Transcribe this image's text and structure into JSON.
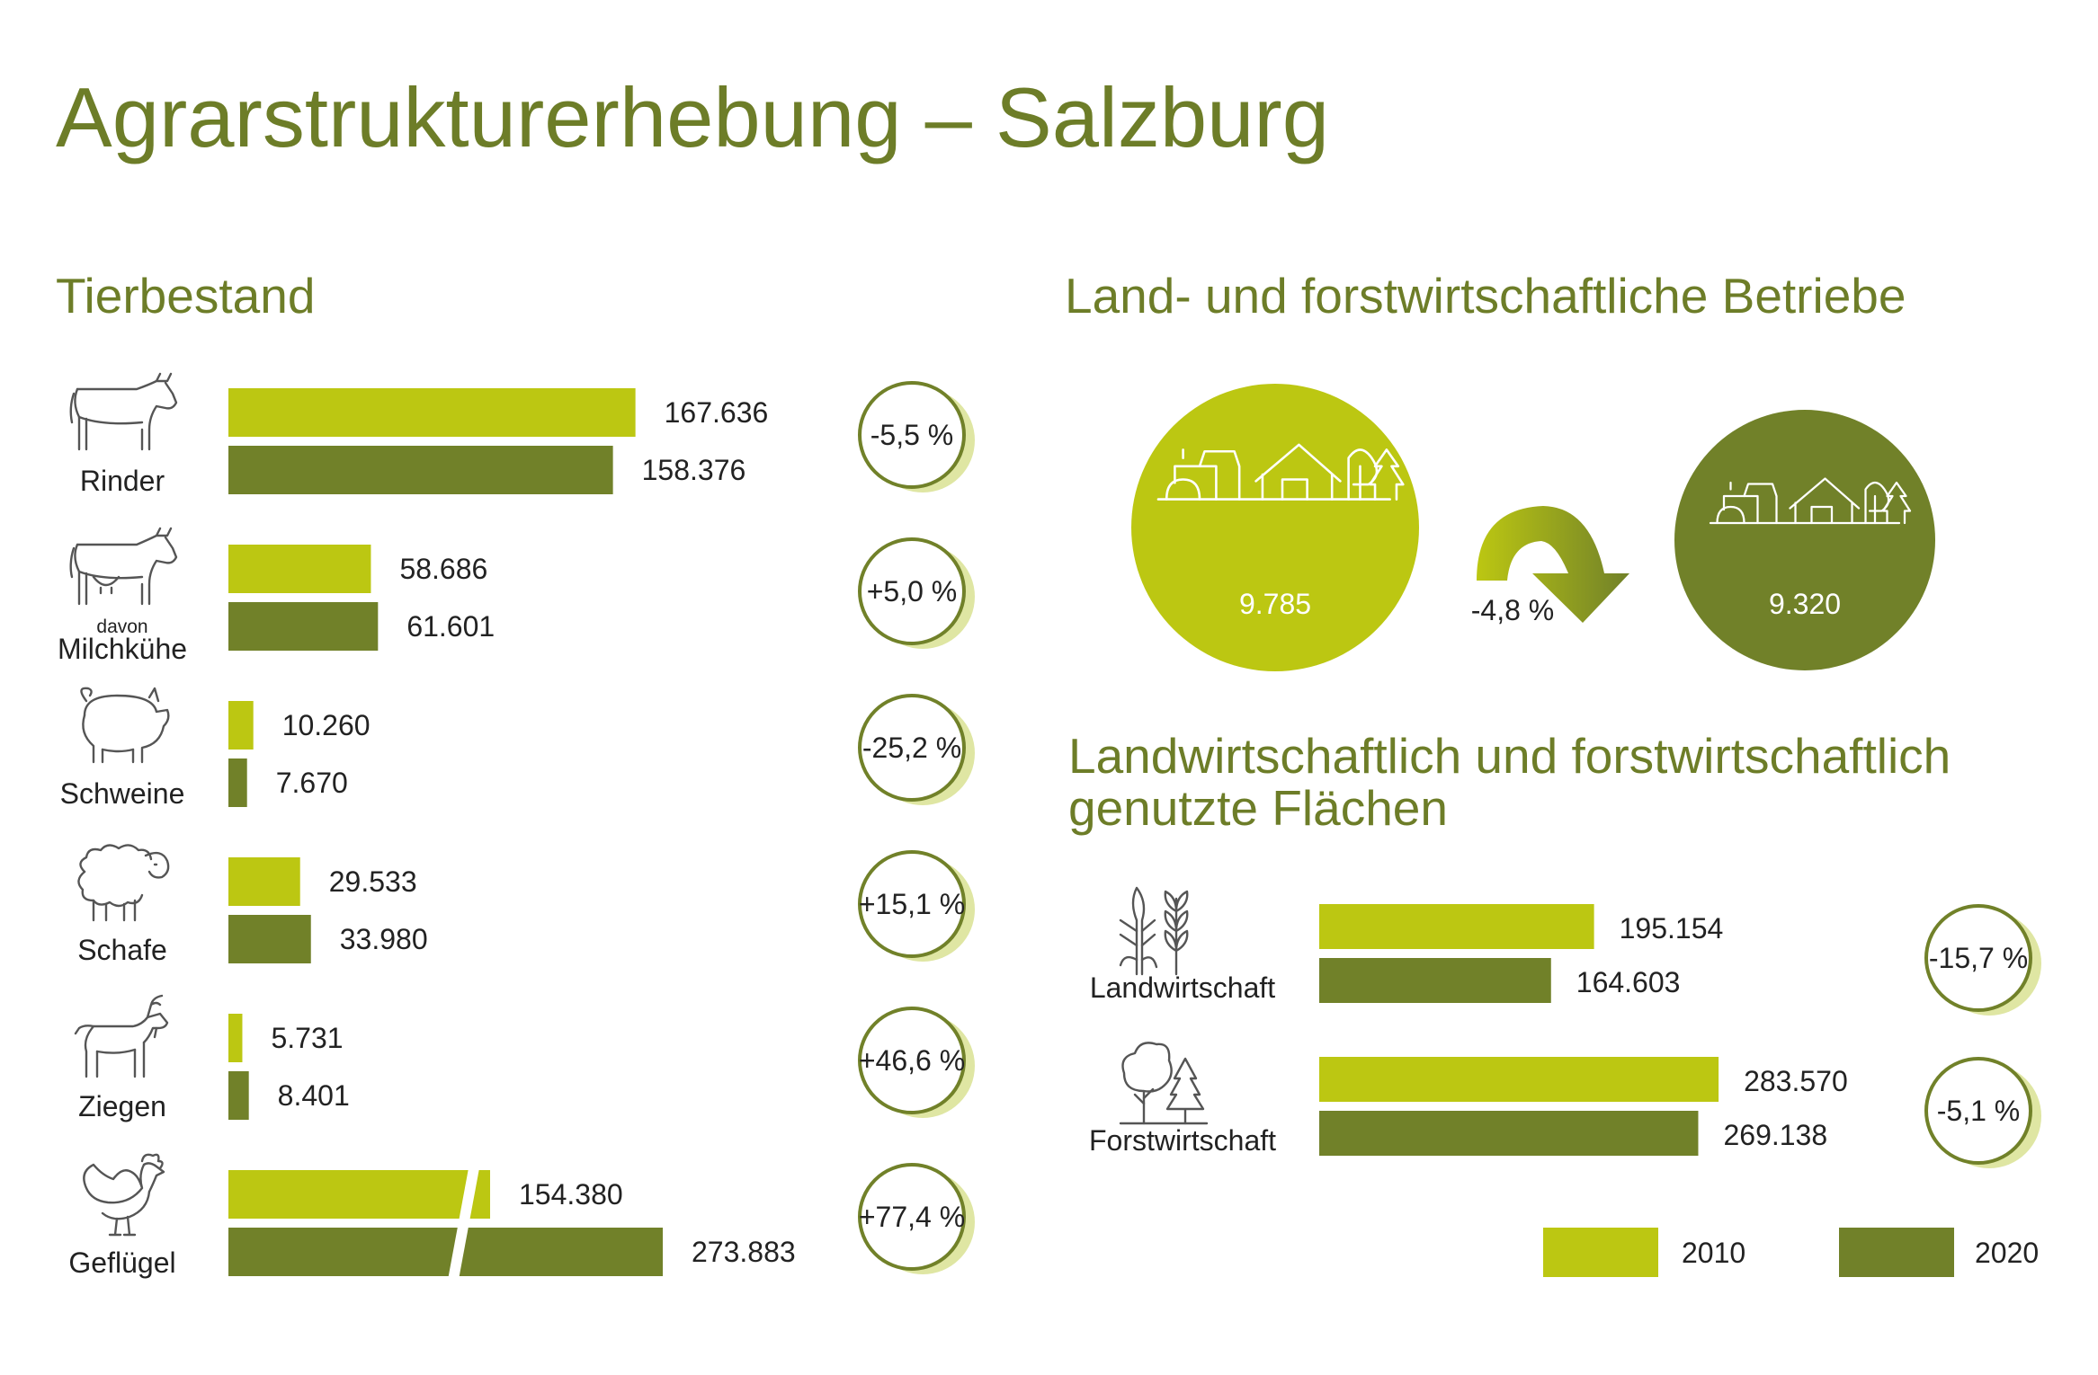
{
  "page_title": "Agrarstrukturerhebung – Salzburg",
  "colors": {
    "title_green": "#6d7d28",
    "light_green": "#bcc712",
    "dark_green": "#718129",
    "ring_shadow": "#dfe6a3",
    "text": "#222222",
    "icon_stroke": "#555555"
  },
  "chart_data": [
    {
      "type": "bar",
      "orientation": "horizontal",
      "title": "Tierbestand",
      "categories": [
        "Rinder",
        "davon Milchkühe",
        "Schweine",
        "Schafe",
        "Ziegen",
        "Geflügel"
      ],
      "category_labels": [
        {
          "line1": "Rinder",
          "prefix": ""
        },
        {
          "line1": "Milchkühe",
          "prefix": "davon"
        },
        {
          "line1": "Schweine",
          "prefix": ""
        },
        {
          "line1": "Schafe",
          "prefix": ""
        },
        {
          "line1": "Ziegen",
          "prefix": ""
        },
        {
          "line1": "Geflügel",
          "prefix": ""
        }
      ],
      "icons": [
        "cow-icon",
        "dairy-cow-icon",
        "pig-icon",
        "sheep-icon",
        "goat-icon",
        "chicken-icon"
      ],
      "series": [
        {
          "name": "2010",
          "values": [
            167636,
            58686,
            10260,
            29533,
            5731,
            154380
          ]
        },
        {
          "name": "2020",
          "values": [
            158376,
            61601,
            7670,
            33980,
            8401,
            273883
          ]
        }
      ],
      "value_labels": [
        [
          "167.636",
          "58.686",
          "10.260",
          "29.533",
          "5.731",
          "154.380"
        ],
        [
          "158.376",
          "61.601",
          "7.670",
          "33.980",
          "8.401",
          "273.883"
        ]
      ],
      "changes": [
        "-5,5 %",
        "+5,0 %",
        "-25,2 %",
        "+15,1 %",
        "+46,6 %",
        "+77,4 %"
      ],
      "broken_axis_category": "Geflügel"
    },
    {
      "type": "bar",
      "orientation": "horizontal",
      "title": "Landwirtschaftlich und forstwirtschaftlich genutzte Flächen",
      "title_lines": [
        "Landwirtschaftlich und forstwirtschaftlich",
        "genutzte Flächen"
      ],
      "categories": [
        "Landwirtschaft",
        "Forstwirtschaft"
      ],
      "icons": [
        "crops-icon",
        "trees-icon"
      ],
      "series": [
        {
          "name": "2010",
          "values": [
            195154,
            283570
          ]
        },
        {
          "name": "2020",
          "values": [
            164603,
            269138
          ]
        }
      ],
      "value_labels": [
        [
          "195.154",
          "283.570"
        ],
        [
          "164.603",
          "269.138"
        ]
      ],
      "changes": [
        "-15,7 %",
        "-5,1 %"
      ]
    }
  ],
  "betriebe": {
    "title": "Land- und forstwirtschaftliche Betriebe",
    "value_2010": "9.785",
    "value_2020": "9.320",
    "change": "-4,8 %",
    "icon": "farm-icon"
  },
  "legend": [
    {
      "label": "2010",
      "color": "#bcc712"
    },
    {
      "label": "2020",
      "color": "#718129"
    }
  ]
}
